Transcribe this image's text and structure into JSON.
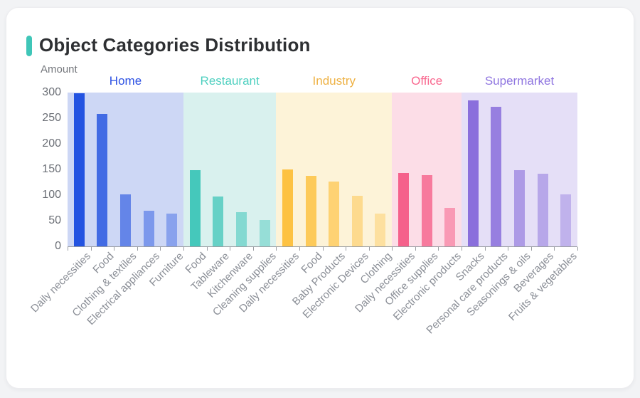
{
  "page": {
    "background_color": "#f2f3f5",
    "card_background": "#ffffff"
  },
  "card": {
    "title": "Object Categories Distribution",
    "title_color": "#2e3033",
    "accent_color": "#3fc6b8"
  },
  "chart_data": {
    "type": "bar",
    "title": "Object Categories Distribution",
    "xlabel": "",
    "ylabel": "Amount",
    "ylabel_color": "#75787d",
    "ylim": [
      0,
      300
    ],
    "yticks": [
      "0",
      "50",
      "100",
      "150",
      "200",
      "250",
      "300"
    ],
    "grid": false,
    "legend_position": "none",
    "axis_color": "#9a9da2",
    "ytick_label_color": "#6b6f76",
    "xtick_label_color": "#8a8e96",
    "groups": [
      {
        "label": "Home",
        "label_color": "#2b50e3",
        "bar_color": "#2353e1",
        "band_color": "#cdd7f5",
        "categories": [
          "Daily necessities",
          "Food",
          "Clothing & textiles",
          "Electrical appliances",
          "Furniture"
        ],
        "values": [
          298,
          258,
          102,
          70,
          64
        ],
        "bar_opacities": [
          1,
          0.82,
          0.62,
          0.48,
          0.4
        ]
      },
      {
        "label": "Restaurant",
        "label_color": "#4fd0c0",
        "bar_color": "#45c8bb",
        "band_color": "#d9f1ee",
        "categories": [
          "Food",
          "Tableware",
          "Kitchenware",
          "Cleaning supplies"
        ],
        "values": [
          148,
          97,
          66,
          51
        ],
        "bar_opacities": [
          1,
          0.78,
          0.58,
          0.45
        ]
      },
      {
        "label": "Industry",
        "label_color": "#eeb143",
        "bar_color": "#fdc243",
        "band_color": "#fdf3d8",
        "categories": [
          "Daily necessities",
          "Food",
          "Baby Products",
          "Electronic Devices",
          "Clothing"
        ],
        "values": [
          150,
          138,
          126,
          99,
          64
        ],
        "bar_opacities": [
          1,
          0.85,
          0.68,
          0.5,
          0.38
        ]
      },
      {
        "label": "Office",
        "label_color": "#f9688f",
        "bar_color": "#f5618b",
        "band_color": "#fcdde7",
        "categories": [
          "Daily necessities",
          "Office supplies",
          "Electronic products"
        ],
        "values": [
          143,
          139,
          75
        ],
        "bar_opacities": [
          1,
          0.8,
          0.55
        ]
      },
      {
        "label": "Supermarket",
        "label_color": "#8f75e0",
        "bar_color": "#8a6fdc",
        "band_color": "#e5dff7",
        "categories": [
          "Snacks",
          "Personal care products",
          "Seasonings & oils",
          "Beverages",
          "Fruits & vegetables"
        ],
        "values": [
          285,
          272,
          148,
          141,
          101
        ],
        "bar_opacities": [
          1,
          0.85,
          0.62,
          0.5,
          0.4
        ]
      }
    ]
  }
}
